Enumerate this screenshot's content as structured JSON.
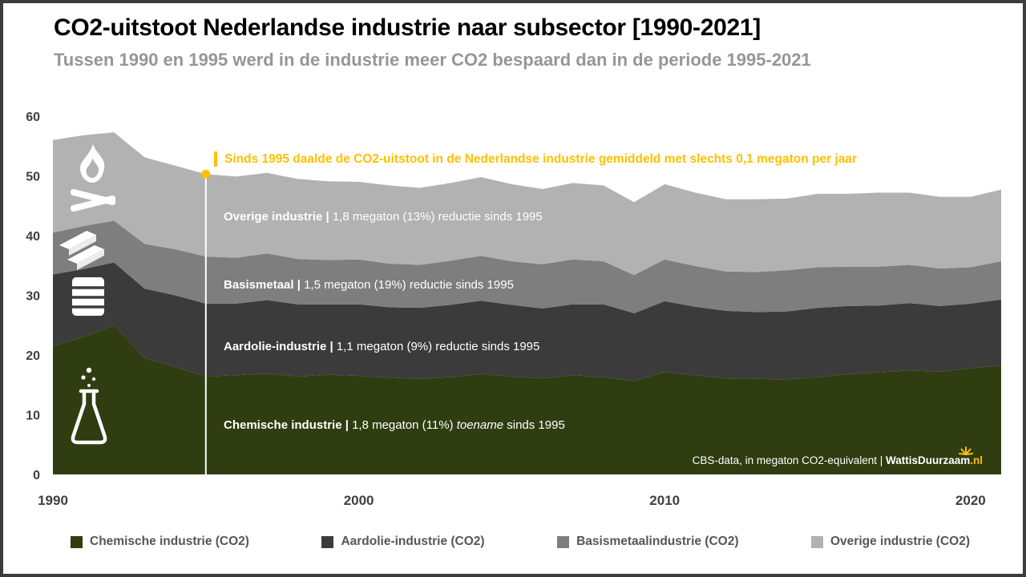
{
  "header": {
    "title": "CO2-uitstoot Nederlandse industrie naar subsector [1990-2021]",
    "subtitle": "Tussen 1990 en 1995 werd in de industrie meer CO2 bespaard dan in de periode 1995-2021"
  },
  "annotation": {
    "marker_year": 1995,
    "marker_value": 50,
    "text": "Sinds 1995 daalde de CO2-uitstoot in de Nederlandse industrie gemiddeld met slechts 0,1 megaton per jaar",
    "accent_color": "#FFC000"
  },
  "area_labels": [
    {
      "name": "Overige industrie |",
      "pre": " 1,8 megaton (13%) reductie sinds 1995",
      "em": "",
      "post": ""
    },
    {
      "name": "Basismetaal |",
      "pre": " 1,5 megaton (19%) reductie sinds 1995",
      "em": "",
      "post": ""
    },
    {
      "name": "Aardolie-industrie |",
      "pre": " 1,1 megaton (9%) reductie sinds 1995",
      "em": "",
      "post": ""
    },
    {
      "name": "Chemische industrie |",
      "pre": " 1,8 megaton (11%) ",
      "em": "toename",
      "post": " sinds 1995"
    }
  ],
  "source": {
    "prefix": "CBS-data, in megaton CO2-equivalent | ",
    "brand": "WattisDuurzaam",
    "suffix": ".nl"
  },
  "legend": [
    {
      "label": "Chemische industrie (CO2)"
    },
    {
      "label": "Aardolie-industrie (CO2)"
    },
    {
      "label": "Basismetaalindustrie (CO2)"
    },
    {
      "label": "Overige industrie (CO2)"
    }
  ],
  "chart_data": {
    "type": "area",
    "stacked": true,
    "title": "CO2-uitstoot Nederlandse industrie naar subsector [1990-2021]",
    "unit": "megaton CO2-equivalent",
    "x": [
      1990,
      1991,
      1992,
      1993,
      1994,
      1995,
      1996,
      1997,
      1998,
      1999,
      2000,
      2001,
      2002,
      2003,
      2004,
      2005,
      2006,
      2007,
      2008,
      2009,
      2010,
      2011,
      2012,
      2013,
      2014,
      2015,
      2016,
      2017,
      2018,
      2019,
      2020,
      2021
    ],
    "series": [
      {
        "name": "Chemische industrie (CO2)",
        "color": "#2F3D11",
        "values": [
          21.5,
          23.0,
          25.0,
          19.5,
          18.0,
          16.4,
          16.6,
          16.9,
          16.4,
          16.7,
          16.5,
          16.2,
          16.0,
          16.3,
          16.8,
          16.4,
          16.1,
          16.6,
          16.3,
          15.6,
          17.2,
          16.6,
          16.1,
          16.0,
          15.9,
          16.3,
          16.8,
          17.1,
          17.4,
          17.2,
          17.8,
          18.2
        ]
      },
      {
        "name": "Aardolie-industrie (CO2)",
        "color": "#3B3B3B",
        "values": [
          12.0,
          11.4,
          10.5,
          11.6,
          12.0,
          12.2,
          12.0,
          12.3,
          12.1,
          11.8,
          12.0,
          11.8,
          11.9,
          12.1,
          12.3,
          12.0,
          11.7,
          11.9,
          12.2,
          11.4,
          11.8,
          11.5,
          11.3,
          11.2,
          11.4,
          11.6,
          11.4,
          11.2,
          11.3,
          11.0,
          10.8,
          11.1
        ]
      },
      {
        "name": "Basismetaalindustrie (CO2)",
        "color": "#7E7E7E",
        "values": [
          7.0,
          7.2,
          7.0,
          7.5,
          7.7,
          7.9,
          7.7,
          7.8,
          7.6,
          7.4,
          7.5,
          7.3,
          7.2,
          7.4,
          7.5,
          7.3,
          7.4,
          7.5,
          7.2,
          6.4,
          7.0,
          6.8,
          6.6,
          6.7,
          6.9,
          6.8,
          6.6,
          6.5,
          6.4,
          6.3,
          6.1,
          6.4
        ]
      },
      {
        "name": "Overige industrie (CO2)",
        "color": "#B2B2B2",
        "values": [
          15.5,
          15.2,
          14.8,
          14.5,
          14.0,
          13.8,
          13.6,
          13.5,
          13.4,
          13.2,
          13.0,
          13.1,
          12.9,
          13.0,
          13.2,
          12.9,
          12.6,
          12.8,
          12.7,
          12.2,
          12.6,
          12.3,
          12.1,
          12.2,
          12.0,
          12.3,
          12.2,
          12.4,
          12.1,
          12.0,
          11.8,
          12.0
        ]
      }
    ],
    "ylim": [
      0,
      60
    ],
    "yticks": [
      0,
      10,
      20,
      30,
      40,
      50,
      60
    ],
    "xticks": [
      1990,
      2000,
      2010,
      2020
    ],
    "grid": false,
    "legend_position": "bottom"
  }
}
